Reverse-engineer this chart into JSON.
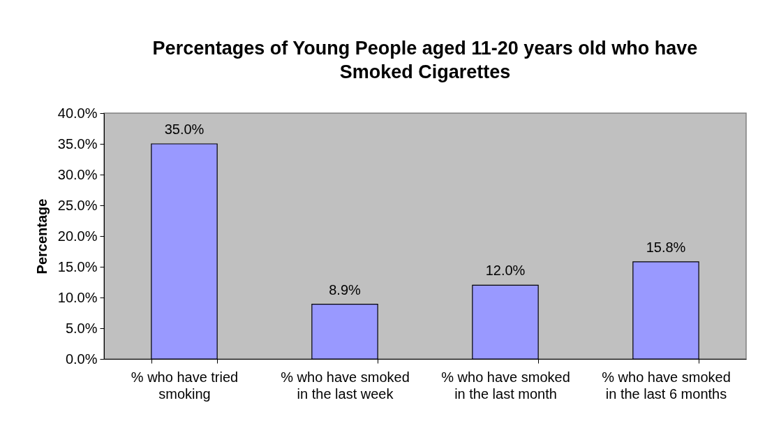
{
  "chart_data": {
    "type": "bar",
    "title": "Percentages of Young People aged 11-20 years old who have Smoked Cigarettes",
    "ylabel": "Percentage",
    "categories": [
      "% who have tried smoking",
      "% who have smoked in the last week",
      "% who have smoked in the last month",
      "% who have smoked in the last 6 months"
    ],
    "values": [
      35.0,
      8.9,
      12.0,
      15.8
    ],
    "color": "#9999ff",
    "value_labels": [
      "35.0%",
      "8.9%",
      "12.0%",
      "15.8%"
    ],
    "ylim": [
      0,
      40
    ],
    "yticks": [
      {
        "value": 0,
        "label": "0.0%"
      },
      {
        "value": 5,
        "label": "5.0%"
      },
      {
        "value": 10,
        "label": "10.0%"
      },
      {
        "value": 15,
        "label": "15.0%"
      },
      {
        "value": 20,
        "label": "20.0%"
      },
      {
        "value": 25,
        "label": "25.0%"
      },
      {
        "value": 30,
        "label": "30.0%"
      },
      {
        "value": 35,
        "label": "35.0%"
      },
      {
        "value": 40,
        "label": "40.0%"
      }
    ],
    "grid": false
  }
}
